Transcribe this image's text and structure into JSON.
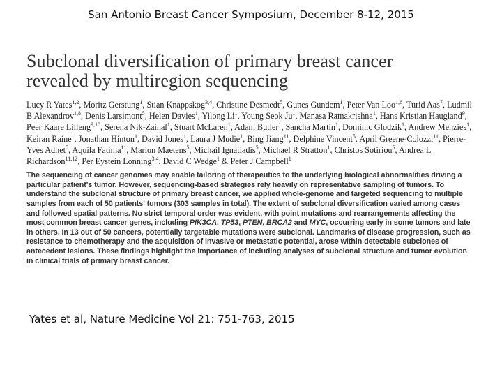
{
  "header": {
    "conference": "San Antonio Breast Cancer Symposium, December 8-12, 2015"
  },
  "paper": {
    "title_line1": "Subclonal diversification of primary breast cancer",
    "title_line2": "revealed by multiregion sequencing",
    "authors": [
      {
        "name": "Lucy R Yates",
        "sup": "1,2"
      },
      {
        "name": "Moritz Gerstung",
        "sup": "1"
      },
      {
        "name": "Stian Knappskog",
        "sup": "3,4"
      },
      {
        "name": "Christine Desmedt",
        "sup": "5"
      },
      {
        "name": "Gunes Gundem",
        "sup": "1"
      },
      {
        "name": "Peter Van Loo",
        "sup": "1,6"
      },
      {
        "name": "Turid Aas",
        "sup": "7"
      },
      {
        "name": "Ludmil B Alexandrov",
        "sup": "1,8"
      },
      {
        "name": "Denis Larsimont",
        "sup": "5"
      },
      {
        "name": "Helen Davies",
        "sup": "1"
      },
      {
        "name": "Yilong Li",
        "sup": "1"
      },
      {
        "name": "Young Seok Ju",
        "sup": "1"
      },
      {
        "name": "Manasa Ramakrishna",
        "sup": "1"
      },
      {
        "name": "Hans Kristian Haugland",
        "sup": "9"
      },
      {
        "name": "Peer Kaare Lilleng",
        "sup": "9,10"
      },
      {
        "name": "Serena Nik-Zainal",
        "sup": "1"
      },
      {
        "name": "Stuart McLaren",
        "sup": "1"
      },
      {
        "name": "Adam Butler",
        "sup": "1"
      },
      {
        "name": "Sancha Martin",
        "sup": "1"
      },
      {
        "name": "Dominic Glodzik",
        "sup": "1"
      },
      {
        "name": "Andrew Menzies",
        "sup": "1"
      },
      {
        "name": "Keiran Raine",
        "sup": "1"
      },
      {
        "name": "Jonathan Hinton",
        "sup": "1"
      },
      {
        "name": "David Jones",
        "sup": "1"
      },
      {
        "name": "Laura J Mudie",
        "sup": "1"
      },
      {
        "name": "Bing Jiang",
        "sup": "11"
      },
      {
        "name": "Delphine Vincent",
        "sup": "5"
      },
      {
        "name": "April Greene-Colozzi",
        "sup": "11"
      },
      {
        "name": "Pierre-Yves Adnet",
        "sup": "5"
      },
      {
        "name": "Aquila Fatima",
        "sup": "11"
      },
      {
        "name": "Marion Maetens",
        "sup": "5"
      },
      {
        "name": "Michail Ignatiadis",
        "sup": "5"
      },
      {
        "name": "Michael R Stratton",
        "sup": "1"
      },
      {
        "name": "Christos Sotiriou",
        "sup": "5"
      },
      {
        "name": "Andrea L Richardson",
        "sup": "11,12"
      },
      {
        "name": "Per Eystein Lonning",
        "sup": "3,4"
      },
      {
        "name": "David C Wedge",
        "sup": "1"
      },
      {
        "name": "Peter J Campbell",
        "sup": "1"
      }
    ],
    "authors_ampersand": "&",
    "abstract": [
      {
        "text": "The sequencing of cancer genomes may enable tailoring of therapeutics to the underlying biological abnormalities driving a particular patient's tumor. However, sequencing-based strategies rely heavily on representative sampling of tumors. To understand the subclonal structure of primary breast cancer, we applied whole-genome and targeted sequencing to multiple samples from each of 50 patients' tumors (303 samples in total). The extent of subclonal diversification varied among cases and followed spatial patterns. No strict temporal order was evident, with point mutations and rearrangements affecting the most common breast cancer genes, including "
      },
      {
        "italic": "PIK3CA"
      },
      {
        "text": ", "
      },
      {
        "italic": "TP53"
      },
      {
        "text": ", "
      },
      {
        "italic": "PTEN"
      },
      {
        "text": ", "
      },
      {
        "italic": "BRCA2"
      },
      {
        "text": " and "
      },
      {
        "italic": "MYC"
      },
      {
        "text": ", occurring early in some tumors and late in others. In 13 out of 50 cancers, potentially targetable mutations were subclonal. Landmarks of disease progression, such as resistance to chemotherapy and the acquisition of invasive or metastatic potential, arose within detectable subclones of antecedent lesions. These findings highlight the importance of including analyses of subclonal structure and tumor evolution in clinical trials of primary breast cancer."
      }
    ]
  },
  "citation": "Yates et al, Nature Medicine Vol 21: 751-763, 2015"
}
